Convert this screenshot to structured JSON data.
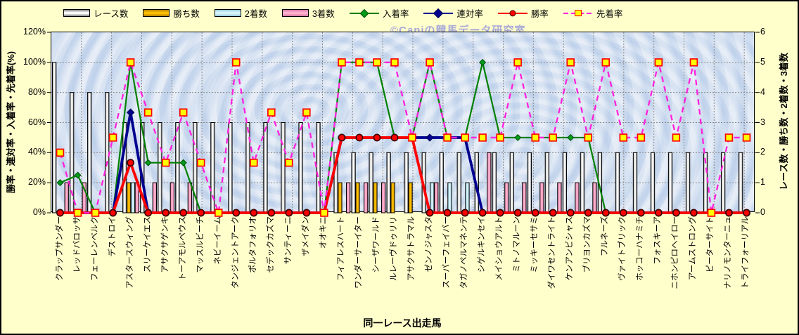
{
  "watermark": {
    "text": "©Caniの競馬データ研究室",
    "color": "#9b9bdb"
  },
  "axes": {
    "left_title": "勝率・連対率・入着率・先着率(%)",
    "right_title": "レース数・勝ち数・2着数・3着数",
    "x_title": "同一レース出走馬",
    "left_ticks": [
      "0%",
      "20%",
      "40%",
      "60%",
      "80%",
      "100%",
      "120%"
    ],
    "right_ticks": [
      "0",
      "1",
      "2",
      "3",
      "4",
      "5",
      "6"
    ]
  },
  "chart_data": {
    "type": "combo-bar-line",
    "grid": true,
    "left_axis": {
      "min": 0,
      "max": 120,
      "step": 20,
      "unit": "%"
    },
    "right_axis": {
      "min": 0,
      "max": 6,
      "step": 1
    },
    "categories": [
      "クラップサンダー",
      "レッドバロッサ",
      "フェーレンベルク",
      "デストロイ",
      "アスタースウィング",
      "スリーケイエス",
      "アサクサゲンキ",
      "トーアモルペウス",
      "マッスルビーチ",
      "ネビーイーム",
      "タンジェントアーク",
      "ポルタフォリオ",
      "セデックカズマ",
      "サンティーニ",
      "ザメイダン",
      "オオキニ",
      "フィアレスハート",
      "ワンダーサーイター",
      "シーザワールド",
      "ルレーヴドゥリリ",
      "アサクサトラマル",
      "ゼンノジャスタ",
      "スーパーフェイバー",
      "タガノペルマネンテ",
      "シゲルキンセイ",
      "メイショウアルト",
      "ミトノマルーン",
      "ミッキーセサミ",
      "ダイワセントライト",
      "ケンアンビシャス",
      "ブリヨンカズマ",
      "フルネーズ",
      "ヴァイトブリック",
      "ホッコーハナミチ",
      "フォスキーア",
      "ニホンピロヘイロー",
      "アームストロング",
      "ピーターサイト",
      "ナリノモンターニュ",
      "トライフォーリアル"
    ],
    "series": [
      {
        "name": "レース数",
        "type": "bar",
        "axis": "right",
        "edge_color": "#7f7f7f",
        "mid_color": "#ffffff",
        "values": [
          5,
          4,
          4,
          4,
          3,
          3,
          3,
          3,
          3,
          3,
          3,
          3,
          3,
          3,
          3,
          3,
          2,
          2,
          2,
          2,
          2,
          2,
          2,
          2,
          2,
          2,
          2,
          2,
          2,
          2,
          2,
          2,
          2,
          2,
          2,
          2,
          2,
          2,
          2,
          2
        ]
      },
      {
        "name": "勝ち数",
        "type": "bar",
        "axis": "right",
        "edge_color": "#b07e00",
        "mid_color": "#ffc000",
        "values": [
          0,
          0,
          0,
          0,
          1,
          0,
          0,
          0,
          0,
          0,
          0,
          0,
          0,
          0,
          0,
          0,
          1,
          1,
          1,
          1,
          1,
          0,
          0,
          0,
          0,
          0,
          0,
          0,
          0,
          0,
          0,
          0,
          0,
          0,
          0,
          0,
          0,
          0,
          0,
          0
        ]
      },
      {
        "name": "2着数",
        "type": "bar",
        "axis": "right",
        "edge_color": "#93c9da",
        "mid_color": "#daf5fc",
        "values": [
          0,
          0,
          0,
          0,
          1,
          0,
          0,
          0,
          0,
          0,
          0,
          0,
          0,
          0,
          0,
          0,
          0,
          0,
          0,
          0,
          0,
          1,
          1,
          1,
          0,
          0,
          0,
          0,
          0,
          0,
          0,
          0,
          0,
          0,
          0,
          0,
          0,
          0,
          0,
          0
        ]
      },
      {
        "name": "3着数",
        "type": "bar",
        "axis": "right",
        "edge_color": "#d3749f",
        "mid_color": "#ffb3cf",
        "values": [
          1,
          1,
          0,
          0,
          1,
          1,
          1,
          1,
          0,
          0,
          0,
          0,
          0,
          0,
          0,
          0,
          1,
          1,
          1,
          0,
          0,
          1,
          0,
          0,
          2,
          1,
          1,
          1,
          1,
          1,
          1,
          0,
          0,
          0,
          0,
          0,
          0,
          0,
          0,
          0
        ]
      },
      {
        "name": "入着率",
        "type": "line",
        "axis": "left",
        "color": "#008000",
        "line_width": 2.2,
        "marker": "diamond",
        "marker_size": 4.3,
        "marker_fill": "#009a1a",
        "marker_stroke": "#005000",
        "values": [
          20,
          25,
          0,
          0,
          100,
          33.3,
          33.3,
          33.3,
          0,
          0,
          0,
          0,
          0,
          0,
          0,
          0,
          100,
          100,
          100,
          50,
          50,
          100,
          50,
          50,
          100,
          50,
          50,
          50,
          50,
          50,
          50,
          0,
          0,
          0,
          0,
          0,
          0,
          0,
          0,
          0
        ]
      },
      {
        "name": "連対率",
        "type": "line",
        "axis": "left",
        "color": "#000090",
        "line_width": 3.8,
        "marker": "diamond",
        "marker_size": 5,
        "marker_fill": "#000090",
        "marker_stroke": "#000050",
        "values": [
          0,
          0,
          0,
          0,
          66.7,
          0,
          0,
          0,
          0,
          0,
          0,
          0,
          0,
          0,
          0,
          0,
          50,
          50,
          50,
          50,
          50,
          50,
          50,
          50,
          0,
          0,
          0,
          0,
          0,
          0,
          0,
          0,
          0,
          0,
          0,
          0,
          0,
          0,
          0,
          0
        ]
      },
      {
        "name": "勝率",
        "type": "line",
        "axis": "left",
        "color": "#ff0000",
        "line_width": 3.8,
        "marker": "circle",
        "marker_size": 4.6,
        "marker_fill": "#ff0000",
        "marker_stroke": "#3a0000",
        "values": [
          0,
          0,
          0,
          0,
          33.3,
          0,
          0,
          0,
          0,
          0,
          0,
          0,
          0,
          0,
          0,
          0,
          50,
          50,
          50,
          50,
          50,
          0,
          0,
          0,
          0,
          0,
          0,
          0,
          0,
          0,
          0,
          0,
          0,
          0,
          0,
          0,
          0,
          0,
          0,
          0
        ]
      },
      {
        "name": "先着率",
        "type": "line",
        "axis": "left",
        "color": "#ff22dd",
        "line_width": 2.3,
        "dash": "8 6",
        "marker": "square",
        "marker_size": 4.9,
        "marker_fill": "#ffff00",
        "marker_stroke": "#ff0000",
        "values": [
          40,
          0,
          0,
          50,
          100,
          66.7,
          33.3,
          66.7,
          33.3,
          0,
          100,
          33.3,
          66.7,
          33.3,
          66.7,
          0,
          100,
          100,
          100,
          100,
          50,
          100,
          50,
          50,
          50,
          50,
          100,
          50,
          50,
          100,
          50,
          100,
          50,
          50,
          100,
          50,
          100,
          0,
          50,
          50
        ]
      }
    ]
  }
}
